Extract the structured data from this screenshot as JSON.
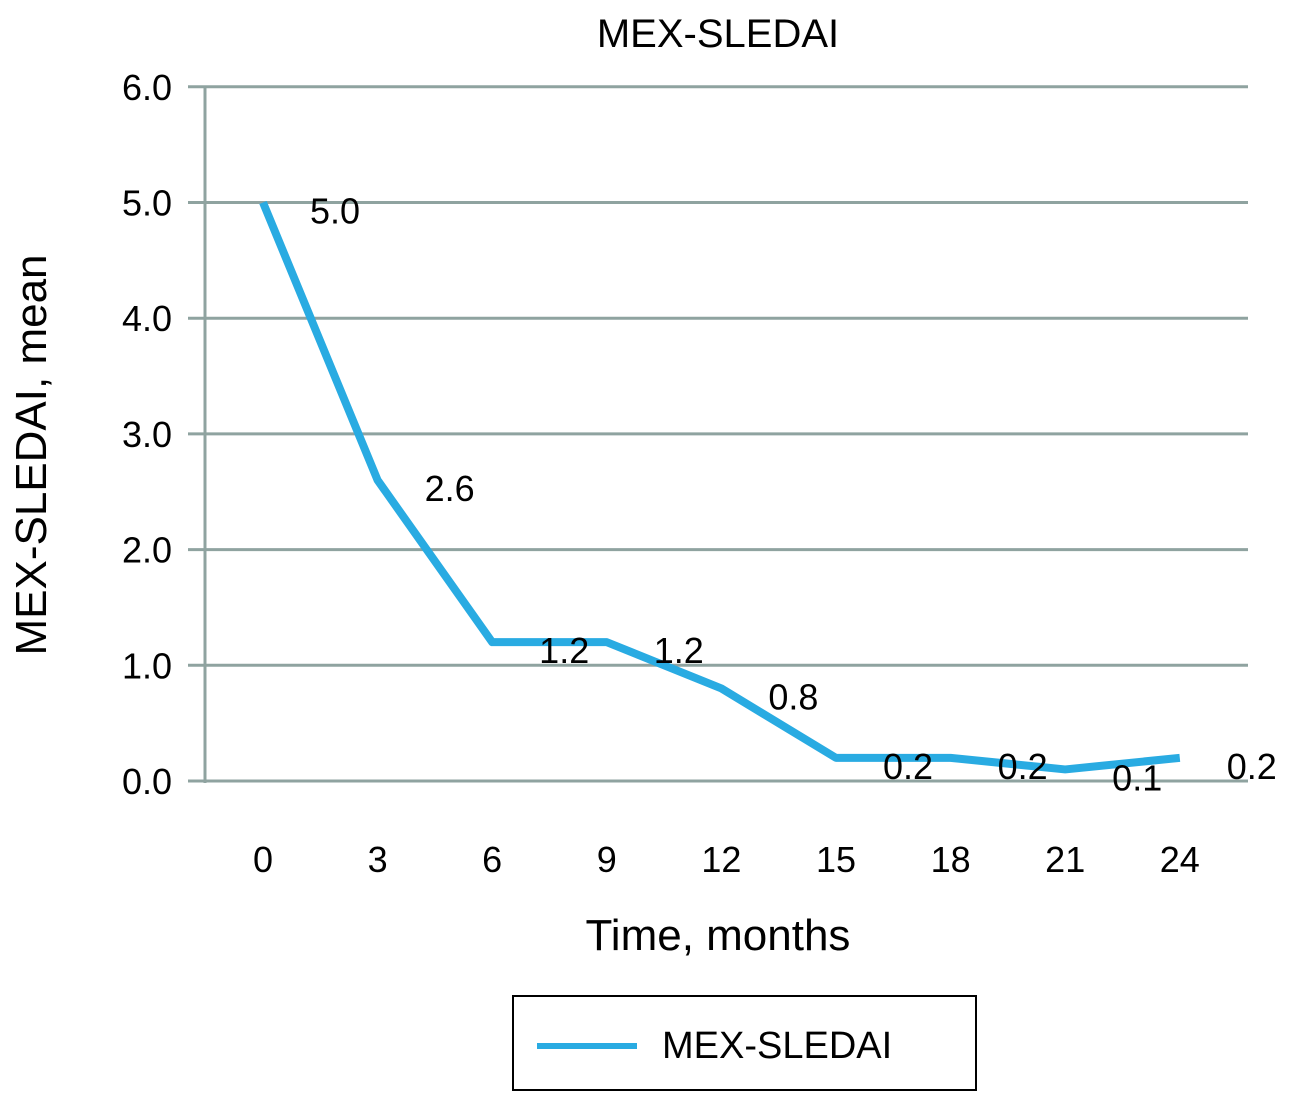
{
  "chart_data": {
    "type": "line",
    "title": "MEX-SLEDAI",
    "xlabel": "Time, months",
    "ylabel": "MEX-SLEDAI, mean",
    "categories": [
      "0",
      "3",
      "6",
      "9",
      "12",
      "15",
      "18",
      "21",
      "24"
    ],
    "series": [
      {
        "name": "MEX-SLEDAI",
        "values": [
          5.0,
          2.6,
          1.2,
          1.2,
          0.8,
          0.2,
          0.2,
          0.1,
          0.2
        ],
        "data_labels": [
          "5.0",
          "2.6",
          "1.2",
          "1.2",
          "0.8",
          "0.2",
          "0.2",
          "0.1",
          "0.2"
        ],
        "color": "#29abe2"
      }
    ],
    "ylim": [
      0,
      6
    ],
    "yticks": [
      "0.0",
      "1.0",
      "2.0",
      "3.0",
      "4.0",
      "5.0",
      "6.0"
    ],
    "grid": true,
    "gridline_color": "#8fa3a0",
    "legend": "bottom"
  }
}
